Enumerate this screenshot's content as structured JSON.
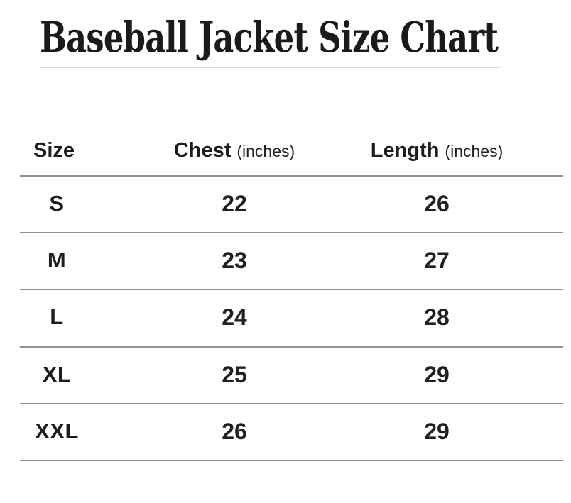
{
  "title": "Baseball Jacket Size Chart",
  "colors": {
    "text": "#1d1d1d",
    "row_line": "#929292",
    "title_rule": "#dbdbdb",
    "background": "#ffffff"
  },
  "chart_data": {
    "type": "table",
    "title": "Baseball Jacket Size Chart",
    "columns": [
      {
        "label": "Size",
        "unit": ""
      },
      {
        "label": "Chest",
        "unit": "(inches)"
      },
      {
        "label": "Length",
        "unit": "(inches)"
      }
    ],
    "rows": [
      [
        "S",
        "22",
        "26"
      ],
      [
        "M",
        "23",
        "27"
      ],
      [
        "L",
        "24",
        "28"
      ],
      [
        "XL",
        "25",
        "29"
      ],
      [
        "XXL",
        "26",
        "29"
      ]
    ]
  }
}
